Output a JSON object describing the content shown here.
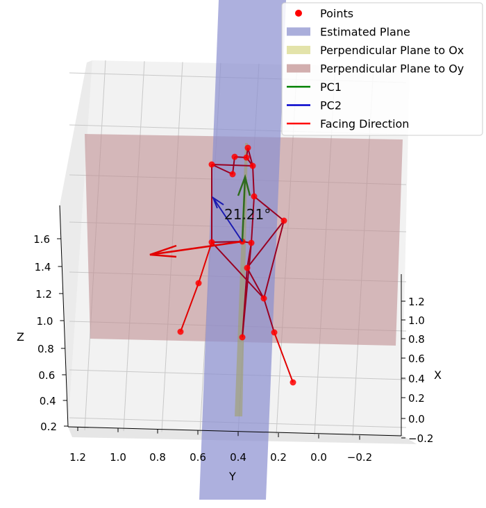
{
  "chart_data": {
    "type": "scatter",
    "projection": "3d",
    "title": "",
    "xlabel": "X",
    "ylabel": "Y",
    "zlabel": "Z",
    "x_ticks": [
      "1.2",
      "1.0",
      "0.8",
      "0.6",
      "0.4",
      "0.2",
      "0.0",
      "−0.2"
    ],
    "y_ticks": [
      "1.2",
      "1.0",
      "0.8",
      "0.6",
      "0.4",
      "0.2",
      "0.0",
      "−0.2"
    ],
    "z_ticks": [
      "0.2",
      "0.4",
      "0.6",
      "0.8",
      "1.0",
      "1.2",
      "1.4",
      "1.6"
    ],
    "annotation": "21.21°",
    "legend": {
      "position": "upper right",
      "entries": [
        {
          "label": "Points",
          "kind": "marker",
          "color": "#ff0000"
        },
        {
          "label": "Estimated Plane",
          "kind": "patch",
          "color": "#aaaedb"
        },
        {
          "label": "Perpendicular Plane to Ox",
          "kind": "patch",
          "color": "#e3e3aa"
        },
        {
          "label": "Perpendicular Plane to Oy",
          "kind": "patch",
          "color": "#d2aeae"
        },
        {
          "label": "PC1",
          "kind": "line",
          "color": "#008000"
        },
        {
          "label": "PC2",
          "kind": "line",
          "color": "#0000cc"
        },
        {
          "label": "Facing Direction",
          "kind": "line",
          "color": "#ff0000"
        }
      ]
    },
    "colors": {
      "points": "#ff0000",
      "skeleton": "#990022",
      "estimated_plane": "#8a8fd0",
      "perp_ox": "#a0a060",
      "perp_oy": "#c08f93",
      "pc1": "#2e6b1e",
      "pc2": "#1b1bb0",
      "facing": "#e10000",
      "pane": "#f2f2f2",
      "grid": "#c8c8c8"
    },
    "grid": true
  }
}
